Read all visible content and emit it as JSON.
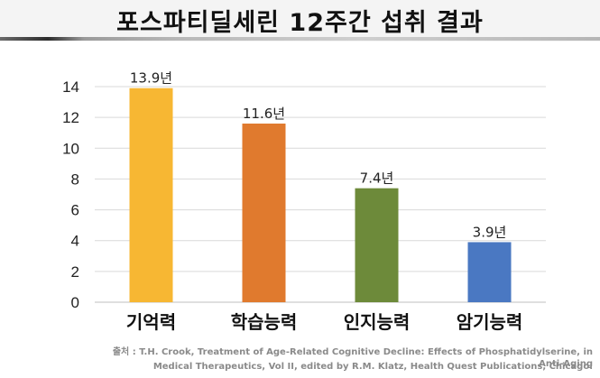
{
  "title": "포스파티딜세린 12주간 섭취 결과",
  "source_lines": [
    "출처 : T.H. Crook, Treatment of Age-Related Cognitive Decline: Effects of Phosphatidylserine, in Anti-Aging",
    "Medical Therapeutics, Vol II, edited by R.M. Klatz, Health Quest Publications, Chicago."
  ],
  "chart_data": {
    "type": "bar",
    "title": "포스파티딜세린 12주간 섭취 결과",
    "categories": [
      "기억력",
      "학습능력",
      "인지능력",
      "암기능력"
    ],
    "values": [
      13.9,
      11.6,
      7.4,
      3.9
    ],
    "data_labels": [
      "13.9년",
      "11.6년",
      "7.4년",
      "3.9년"
    ],
    "colors": [
      "#f7b733",
      "#e07a2e",
      "#6d8a3a",
      "#4a78c2"
    ],
    "ylim": [
      0,
      14
    ],
    "yticks": [
      "0",
      "2",
      "4",
      "6",
      "8",
      "10",
      "12",
      "14"
    ],
    "grid": true,
    "xlabel": "",
    "ylabel": ""
  }
}
